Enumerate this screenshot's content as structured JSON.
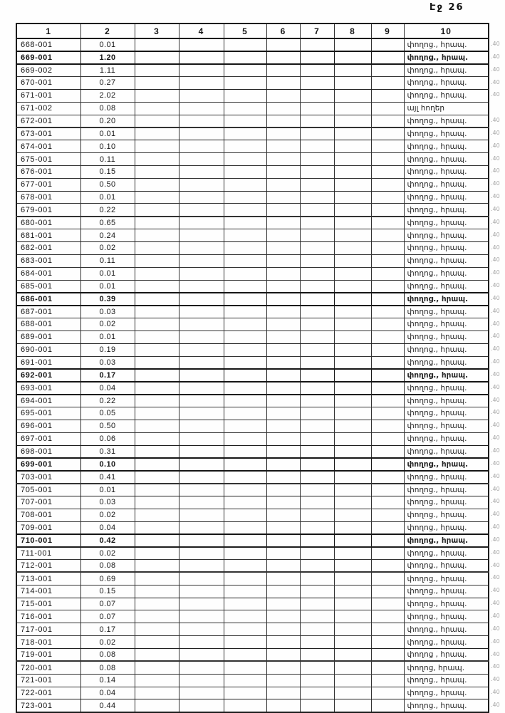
{
  "page": {
    "header": "Էջ 26"
  },
  "table": {
    "columns": [
      "1",
      "2",
      "3",
      "4",
      "5",
      "6",
      "7",
      "8",
      "9",
      "10"
    ],
    "empty_columns_count": 7,
    "default_category": "փողոց., հրապ.",
    "rows": [
      {
        "code": "668-001",
        "area": "0.01",
        "cat": "փողոց., հրապ.",
        "mark": ".40"
      },
      {
        "code": "669-001",
        "area": "1.20",
        "cat": "փողոց., հրապ.",
        "mark": ".40",
        "b": 1
      },
      {
        "code": "669-002",
        "area": "1.11",
        "cat": "փողոց., հրապ.",
        "mark": ".40"
      },
      {
        "code": "670-001",
        "area": "0.27",
        "cat": "փողոց., հրապ.",
        "mark": ".40"
      },
      {
        "code": "671-001",
        "area": "2.02",
        "cat": "փողոց., հրապ.",
        "mark": ".40"
      },
      {
        "code": "671-002",
        "area": "0.08",
        "cat": "այլ հողեր",
        "mark": ""
      },
      {
        "code": "672-001",
        "area": "0.20",
        "cat": "փողոց., հրապ.",
        "mark": ".40"
      },
      {
        "code": "673-001",
        "area": "0.01",
        "cat": "փողոց., հրապ.",
        "mark": ".40"
      },
      {
        "code": "674-001",
        "area": "0.10",
        "cat": "փողոց., հրապ.",
        "mark": ".40"
      },
      {
        "code": "675-001",
        "area": "0.11",
        "cat": "փողոց., հրապ.",
        "mark": ".40"
      },
      {
        "code": "676-001",
        "area": "0.15",
        "cat": "փողոց., հրապ.",
        "mark": ".40"
      },
      {
        "code": "677-001",
        "area": "0.50",
        "cat": "փողոց., հրապ.",
        "mark": ".40"
      },
      {
        "code": "678-001",
        "area": "0.01",
        "cat": "փողոց., հրապ.",
        "mark": ".40"
      },
      {
        "code": "679-001",
        "area": "0.22",
        "cat": "փողոց., հրապ.",
        "mark": ".40"
      },
      {
        "code": "680-001",
        "area": "0.65",
        "cat": "փողոց., հրապ.",
        "mark": ".40"
      },
      {
        "code": "681-001",
        "area": "0.24",
        "cat": "փողոց., հրապ.",
        "mark": ".40"
      },
      {
        "code": "682-001",
        "area": "0.02",
        "cat": "փողոց., հրապ.",
        "mark": ".40"
      },
      {
        "code": "683-001",
        "area": "0.11",
        "cat": "փողոց., հրապ.",
        "mark": ".40"
      },
      {
        "code": "684-001",
        "area": "0.01",
        "cat": "փողոց., հրապ.",
        "mark": ".40"
      },
      {
        "code": "685-001",
        "area": "0.01",
        "cat": "փողոց., հրապ.",
        "mark": ".40"
      },
      {
        "code": "686-001",
        "area": "0.39",
        "cat": "փողոց., հրապ.",
        "mark": ".40",
        "b": 1
      },
      {
        "code": "687-001",
        "area": "0.03",
        "cat": "փողոց., հրապ.",
        "mark": ".40"
      },
      {
        "code": "688-001",
        "area": "0.02",
        "cat": "փողոց., հրապ.",
        "mark": ".40"
      },
      {
        "code": "689-001",
        "area": "0.01",
        "cat": "փողոց., հրապ.",
        "mark": ".40"
      },
      {
        "code": "690-001",
        "area": "0.19",
        "cat": "փողոց., հրապ.",
        "mark": ".40"
      },
      {
        "code": "691-001",
        "area": "0.03",
        "cat": "փողոց., հրապ.",
        "mark": ".40"
      },
      {
        "code": "692-001",
        "area": "0.17",
        "cat": "փողոց., հրապ.",
        "mark": ".40",
        "b": 1
      },
      {
        "code": "693-001",
        "area": "0.04",
        "cat": "փողոց., հրապ.",
        "mark": ".40"
      },
      {
        "code": "694-001",
        "area": "0.22",
        "cat": "փողոց., հրապ.",
        "mark": ".40"
      },
      {
        "code": "695-001",
        "area": "0.05",
        "cat": "փողոց., հրապ.",
        "mark": ".40"
      },
      {
        "code": "696-001",
        "area": "0.50",
        "cat": "փողոց., հրապ.",
        "mark": ".40"
      },
      {
        "code": "697-001",
        "area": "0.06",
        "cat": "փողոց., հրապ.",
        "mark": ".40"
      },
      {
        "code": "698-001",
        "area": "0.31",
        "cat": "փողոց., հրապ.",
        "mark": ".40"
      },
      {
        "code": "699-001",
        "area": "0.10",
        "cat": "փողոց., հրապ.",
        "mark": ".40",
        "b": 1
      },
      {
        "code": "703-001",
        "area": "0.41",
        "cat": "փողոց., հրապ.",
        "mark": ".40"
      },
      {
        "code": "705-001",
        "area": "0.01",
        "cat": "փողոց., հրապ.",
        "mark": ".40"
      },
      {
        "code": "707-001",
        "area": "0.03",
        "cat": "փողոց., հրապ.",
        "mark": ".40"
      },
      {
        "code": "708-001",
        "area": "0.02",
        "cat": "փողոց., հրապ.",
        "mark": ".40"
      },
      {
        "code": "709-001",
        "area": "0.04",
        "cat": "փողոց., հրապ.",
        "mark": ".40"
      },
      {
        "code": "710-001",
        "area": "0.42",
        "cat": "փողոց., հրապ.",
        "mark": ".40",
        "b": 1
      },
      {
        "code": "711-001",
        "area": "0.02",
        "cat": "փողոց., հրապ.",
        "mark": ".40"
      },
      {
        "code": "712-001",
        "area": "0.08",
        "cat": "փողոց., հրապ.",
        "mark": ".40"
      },
      {
        "code": "713-001",
        "area": "0.69",
        "cat": "փողոց., հրապ.",
        "mark": ".40"
      },
      {
        "code": "714-001",
        "area": "0.15",
        "cat": "փողոց., հրապ.",
        "mark": ".40"
      },
      {
        "code": "715-001",
        "area": "0.07",
        "cat": "փողոց., հրապ.",
        "mark": ".40"
      },
      {
        "code": "716-001",
        "area": "0.07",
        "cat": "փողոց., հրապ.",
        "mark": ".40"
      },
      {
        "code": "717-001",
        "area": "0.17",
        "cat": "փողոց., հրապ.",
        "mark": ".40"
      },
      {
        "code": "718-001",
        "area": "0.02",
        "cat": "փողոց., հրապ.",
        "mark": ".40"
      },
      {
        "code": "719-001",
        "area": "0.08",
        "cat": "փողոց , հրապ.",
        "mark": ".40"
      },
      {
        "code": "720-001",
        "area": "0.08",
        "cat": "փողոց, հրապ.",
        "mark": ".40"
      },
      {
        "code": "721-001",
        "area": "0.14",
        "cat": "փողոց., հրապ.",
        "mark": ".40"
      },
      {
        "code": "722-001",
        "area": "0.04",
        "cat": "փողոց., հրապ.",
        "mark": ".40"
      },
      {
        "code": "723-001",
        "area": "0.44",
        "cat": "փողոց., հրապ.",
        "mark": ".40"
      }
    ]
  }
}
